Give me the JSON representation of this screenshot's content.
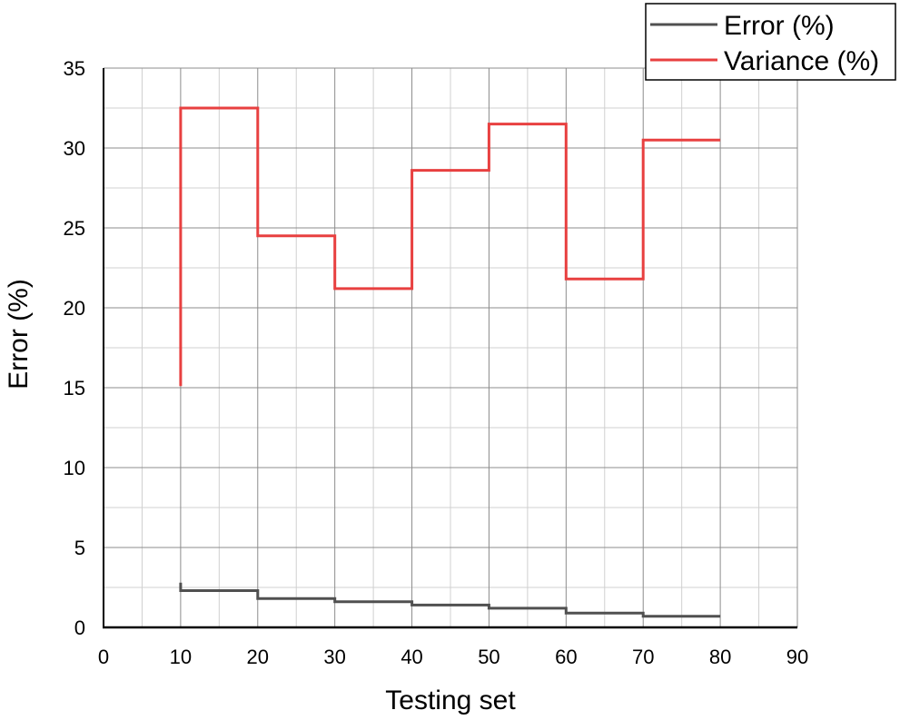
{
  "chart_data": {
    "type": "line",
    "step": true,
    "xlabel": "Testing set",
    "ylabel": "Error (%)",
    "xlim": [
      0,
      90
    ],
    "ylim": [
      0,
      35
    ],
    "x_ticks": [
      "0",
      "10",
      "20",
      "30",
      "40",
      "50",
      "60",
      "70",
      "80",
      "90"
    ],
    "y_ticks": [
      "0",
      "5",
      "10",
      "15",
      "20",
      "25",
      "30",
      "35"
    ],
    "x_tick_values": [
      0,
      10,
      20,
      30,
      40,
      50,
      60,
      70,
      80,
      90
    ],
    "y_tick_values": [
      0,
      5,
      10,
      15,
      20,
      25,
      30,
      35
    ],
    "grid": true,
    "legend_position": "top-right",
    "series": [
      {
        "name": "Error (%)",
        "color": "#505050",
        "points": [
          [
            10,
            2.8
          ],
          [
            10,
            2.3
          ],
          [
            20,
            2.3
          ],
          [
            20,
            1.8
          ],
          [
            30,
            1.8
          ],
          [
            30,
            1.6
          ],
          [
            40,
            1.6
          ],
          [
            40,
            1.4
          ],
          [
            50,
            1.4
          ],
          [
            50,
            1.2
          ],
          [
            60,
            1.2
          ],
          [
            60,
            0.9
          ],
          [
            70,
            0.9
          ],
          [
            70,
            0.7
          ],
          [
            80,
            0.7
          ]
        ]
      },
      {
        "name": "Variance (%)",
        "color": "#e84040",
        "points": [
          [
            10,
            15.1
          ],
          [
            10,
            32.5
          ],
          [
            20,
            32.5
          ],
          [
            20,
            24.5
          ],
          [
            30,
            24.5
          ],
          [
            30,
            21.2
          ],
          [
            40,
            21.2
          ],
          [
            40,
            28.6
          ],
          [
            50,
            28.6
          ],
          [
            50,
            31.5
          ],
          [
            60,
            31.5
          ],
          [
            60,
            21.8
          ],
          [
            70,
            21.8
          ],
          [
            70,
            30.5
          ],
          [
            80,
            30.5
          ]
        ]
      }
    ]
  }
}
